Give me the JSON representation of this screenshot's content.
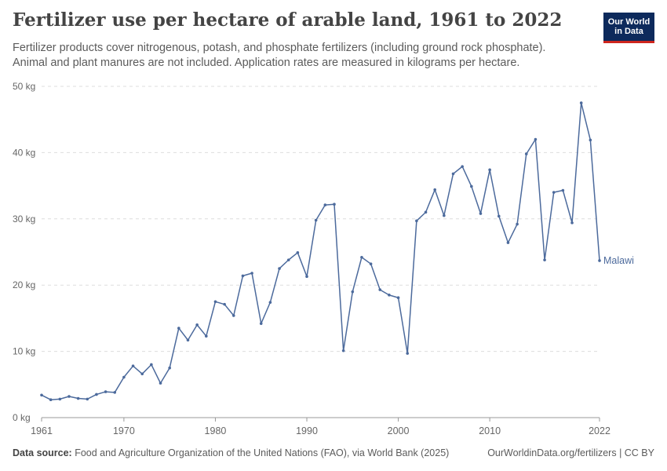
{
  "header": {
    "title": "Fertilizer use per hectare of arable land, 1961 to 2022",
    "subtitle": "Fertilizer products cover nitrogenous, potash, and phosphate fertilizers (including ground rock phosphate). Animal and plant manures are not included. Application rates are measured in kilograms per hectare."
  },
  "logo": {
    "line1": "Our World",
    "line2": "in Data",
    "bg_color": "#0d2a5c",
    "accent_color": "#ce261e"
  },
  "footer": {
    "source_label": "Data source:",
    "source_text": "Food and Agriculture Organization of the United Nations (FAO), via World Bank (2025)",
    "right_text": "OurWorldinData.org/fertilizers | CC BY"
  },
  "chart_data": {
    "type": "line",
    "xlim": [
      1961,
      2022
    ],
    "ylim": [
      0,
      50
    ],
    "y_ticks": [
      {
        "value": 0,
        "label": "0 kg"
      },
      {
        "value": 10,
        "label": "10 kg"
      },
      {
        "value": 20,
        "label": "20 kg"
      },
      {
        "value": 30,
        "label": "30 kg"
      },
      {
        "value": 40,
        "label": "40 kg"
      },
      {
        "value": 50,
        "label": "50 kg"
      }
    ],
    "x_ticks": [
      1961,
      1970,
      1980,
      1990,
      2000,
      2010,
      2022
    ],
    "grid": "horizontal dashed",
    "series": [
      {
        "name": "Malawi",
        "color": "#4c6a9c",
        "x": [
          1961,
          1962,
          1963,
          1964,
          1965,
          1966,
          1967,
          1968,
          1969,
          1970,
          1971,
          1972,
          1973,
          1974,
          1975,
          1976,
          1977,
          1978,
          1979,
          1980,
          1981,
          1982,
          1983,
          1984,
          1985,
          1986,
          1987,
          1988,
          1989,
          1990,
          1991,
          1992,
          1993,
          1994,
          1995,
          1996,
          1997,
          1998,
          1999,
          2000,
          2001,
          2002,
          2003,
          2004,
          2005,
          2006,
          2007,
          2008,
          2009,
          2010,
          2011,
          2012,
          2013,
          2014,
          2015,
          2016,
          2017,
          2018,
          2019,
          2020,
          2021,
          2022
        ],
        "y": [
          3.4,
          2.7,
          2.8,
          3.2,
          2.9,
          2.8,
          3.5,
          3.9,
          3.8,
          6.1,
          7.8,
          6.6,
          8.0,
          5.2,
          7.5,
          13.5,
          11.7,
          14.0,
          12.3,
          17.5,
          17.1,
          15.4,
          21.4,
          21.8,
          14.2,
          17.4,
          22.5,
          23.8,
          24.9,
          21.3,
          29.8,
          32.1,
          32.2,
          10.1,
          19.0,
          24.2,
          23.2,
          19.3,
          18.5,
          18.1,
          9.7,
          29.7,
          31.0,
          34.4,
          30.5,
          36.8,
          37.9,
          34.9,
          30.8,
          37.4,
          30.4,
          26.4,
          29.2,
          39.8,
          42.0,
          23.8,
          34.0,
          34.3,
          29.4,
          47.5,
          41.9,
          23.7
        ]
      }
    ]
  }
}
